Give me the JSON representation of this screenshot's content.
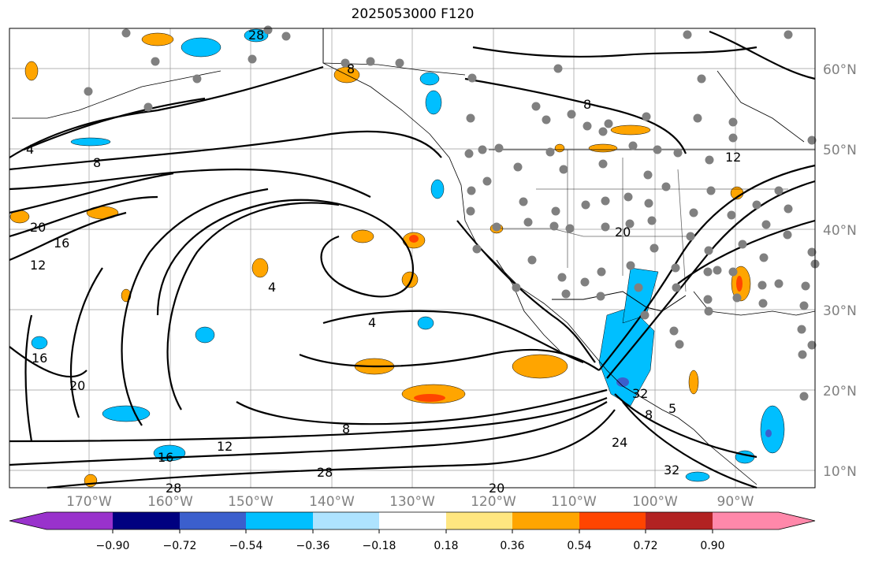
{
  "title": "2025053000 F120",
  "map": {
    "lat_labels": [
      "60°N",
      "50°N",
      "40°N",
      "30°N",
      "20°N",
      "10°N"
    ],
    "lon_labels": [
      "170°W",
      "160°W",
      "150°W",
      "140°W",
      "130°W",
      "120°W",
      "110°W",
      "100°W",
      "90°W"
    ],
    "contour_labels": [
      "4",
      "8",
      "8",
      "4",
      "20",
      "16",
      "12",
      "4",
      "16",
      "20",
      "8",
      "12",
      "16",
      "28",
      "28",
      "20",
      "8",
      "32",
      "5",
      "24",
      "32",
      "12",
      "8",
      "20",
      "28"
    ],
    "contour_color": "#000000",
    "border_color": "#000000",
    "grid_color": "#808080",
    "station_marker_color": "#808080"
  },
  "colorbar": {
    "ticks": [
      "−0.90",
      "−0.72",
      "−0.54",
      "−0.36",
      "−0.18",
      "0.18",
      "0.36",
      "0.54",
      "0.72",
      "0.90"
    ],
    "colors": [
      "#9932cc",
      "#000080",
      "#3b5fcd",
      "#00bfff",
      "#aee3ff",
      "#ffffff",
      "#ffe680",
      "#ffa500",
      "#ff4500",
      "#b22222",
      "#ff88aa"
    ]
  }
}
